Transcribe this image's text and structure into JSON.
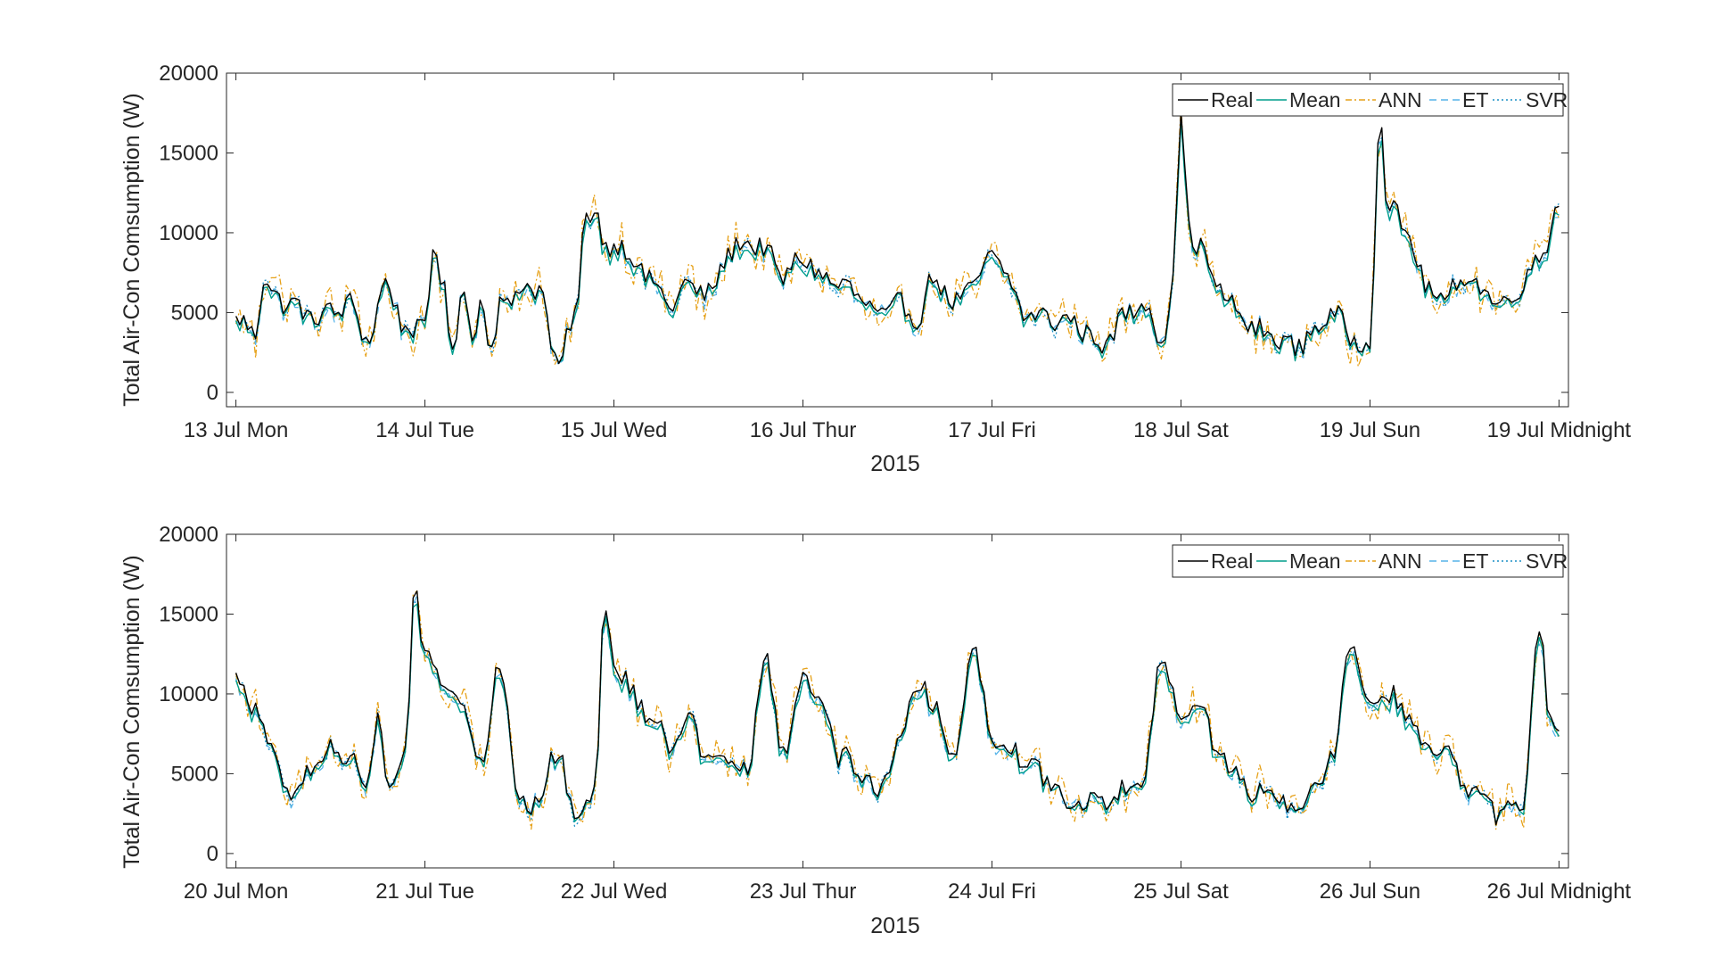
{
  "chart_data": [
    {
      "type": "line",
      "xlabel": "2015",
      "ylabel": "Total Air-Con Comsumption (W)",
      "ylim": [
        -900,
        20000
      ],
      "yticks": [
        0,
        5000,
        10000,
        15000,
        20000
      ],
      "ytick_labels": [
        "0",
        "5000",
        "10000",
        "15000",
        "20000"
      ],
      "xlim": [
        -0.05,
        7.05
      ],
      "xticks": [
        0,
        1,
        2,
        3,
        4,
        5,
        6,
        7
      ],
      "xtick_labels": [
        "13 Jul Mon",
        "14 Jul Tue",
        "15 Jul Wed",
        "16 Jul Thur",
        "17 Jul Fri",
        "18 Jul Sat",
        "19 Jul Sun",
        "19 Jul Midnight"
      ],
      "legend_position": "top-right",
      "grid": false,
      "anchors": {
        "x": [
          0,
          0.1,
          0.15,
          0.2,
          0.3,
          0.4,
          0.5,
          0.6,
          0.7,
          0.8,
          0.9,
          1.0,
          1.05,
          1.1,
          1.15,
          1.2,
          1.25,
          1.3,
          1.35,
          1.4,
          1.45,
          1.5,
          1.55,
          1.6,
          1.7,
          1.8,
          1.85,
          1.9,
          1.95,
          2.0,
          2.1,
          2.2,
          2.3,
          2.4,
          2.5,
          2.6,
          2.7,
          2.8,
          2.9,
          3.0,
          3.1,
          3.2,
          3.3,
          3.4,
          3.5,
          3.6,
          3.7,
          3.8,
          3.9,
          4.0,
          4.2,
          4.4,
          4.6,
          4.7,
          4.8,
          4.9,
          4.95,
          5.0,
          5.05,
          5.1,
          5.2,
          5.3,
          5.4,
          5.5,
          5.6,
          5.7,
          5.8,
          5.9,
          6.0,
          6.05,
          6.1,
          6.2,
          6.3,
          6.4,
          6.5,
          6.6,
          6.7,
          6.8,
          6.9,
          7.0
        ],
        "y": [
          4500,
          3800,
          7200,
          6000,
          5500,
          4700,
          5000,
          5500,
          3400,
          6900,
          3800,
          4200,
          9100,
          6500,
          2200,
          6900,
          3300,
          6000,
          2500,
          5800,
          5500,
          6500,
          6800,
          6500,
          1800,
          4800,
          11200,
          11500,
          9000,
          9500,
          8400,
          6900,
          5500,
          6800,
          6000,
          8600,
          9500,
          8900,
          7200,
          8500,
          7200,
          6800,
          6000,
          4700,
          5500,
          4700,
          7200,
          5500,
          6700,
          8500,
          4800,
          4500,
          3000,
          4800,
          5700,
          3400,
          6000,
          16800,
          10000,
          9000,
          6500,
          5000,
          3800,
          3500,
          2800,
          3800,
          5000,
          3500,
          3000,
          17200,
          11500,
          10000,
          6500,
          5700,
          7500,
          6300,
          5500,
          6700,
          8500,
          12000
        ]
      },
      "series": [
        {
          "name": "Real",
          "color": "#000000",
          "dash": "",
          "width": 1.4
        },
        {
          "name": "Mean",
          "color": "#009e8c",
          "dash": "",
          "width": 1.4
        },
        {
          "name": "ANN",
          "color": "#e6a118",
          "dash": "7,3,2,3",
          "width": 1.3
        },
        {
          "name": "ET",
          "color": "#56b4e9",
          "dash": "8,5",
          "width": 1.3
        },
        {
          "name": "SVR",
          "color": "#1a8fc6",
          "dash": "2,3",
          "width": 1.3
        }
      ]
    },
    {
      "type": "line",
      "xlabel": "2015",
      "ylabel": "Total Air-Con Comsumption (W)",
      "ylim": [
        -900,
        20000
      ],
      "yticks": [
        0,
        5000,
        10000,
        15000,
        20000
      ],
      "ytick_labels": [
        "0",
        "5000",
        "10000",
        "15000",
        "20000"
      ],
      "xlim": [
        -0.05,
        7.05
      ],
      "xticks": [
        0,
        1,
        2,
        3,
        4,
        5,
        6,
        7
      ],
      "xtick_labels": [
        "20 Jul Mon",
        "21 Jul Tue",
        "22 Jul Wed",
        "23 Jul Thur",
        "24 Jul Fri",
        "25 Jul Sat",
        "26 Jul Sun",
        "26 Jul Midnight"
      ],
      "legend_position": "top-right",
      "grid": false,
      "anchors": {
        "x": [
          0,
          0.1,
          0.2,
          0.3,
          0.4,
          0.5,
          0.6,
          0.7,
          0.75,
          0.8,
          0.9,
          0.95,
          1.0,
          1.1,
          1.2,
          1.3,
          1.4,
          1.5,
          1.6,
          1.7,
          1.8,
          1.9,
          1.95,
          2.0,
          2.1,
          2.2,
          2.3,
          2.4,
          2.5,
          2.6,
          2.7,
          2.8,
          2.9,
          3.0,
          3.1,
          3.2,
          3.3,
          3.4,
          3.5,
          3.6,
          3.7,
          3.8,
          3.9,
          4.0,
          4.1,
          4.2,
          4.3,
          4.4,
          4.5,
          4.6,
          4.7,
          4.8,
          4.9,
          5.0,
          5.1,
          5.2,
          5.3,
          5.4,
          5.5,
          5.6,
          5.7,
          5.8,
          5.9,
          6.0,
          6.1,
          6.2,
          6.3,
          6.4,
          6.5,
          6.6,
          6.7,
          6.8,
          6.9,
          6.95,
          7.0
        ],
        "y": [
          11000,
          9200,
          6000,
          3500,
          5500,
          6500,
          6000,
          4500,
          8500,
          4000,
          6500,
          16800,
          12500,
          11000,
          9000,
          6000,
          11800,
          3500,
          3200,
          6500,
          2300,
          4000,
          15500,
          12000,
          10000,
          8500,
          7000,
          8500,
          5500,
          6000,
          5000,
          12000,
          6500,
          11000,
          9500,
          6000,
          5000,
          4000,
          6500,
          11000,
          9000,
          6000,
          13000,
          7500,
          6500,
          5500,
          4500,
          3200,
          3300,
          3000,
          4000,
          4500,
          12500,
          8500,
          9500,
          6000,
          5000,
          3500,
          4000,
          2300,
          4000,
          6000,
          13000,
          9500,
          10000,
          8500,
          6500,
          6500,
          4000,
          3500,
          2300,
          2800,
          14000,
          9000,
          7000
        ]
      },
      "series": [
        {
          "name": "Real",
          "color": "#000000",
          "dash": "",
          "width": 1.4
        },
        {
          "name": "Mean",
          "color": "#009e8c",
          "dash": "",
          "width": 1.4
        },
        {
          "name": "ANN",
          "color": "#e6a118",
          "dash": "7,3,2,3",
          "width": 1.3
        },
        {
          "name": "ET",
          "color": "#56b4e9",
          "dash": "8,5",
          "width": 1.3
        },
        {
          "name": "SVR",
          "color": "#1a8fc6",
          "dash": "2,3",
          "width": 1.3
        }
      ]
    }
  ]
}
